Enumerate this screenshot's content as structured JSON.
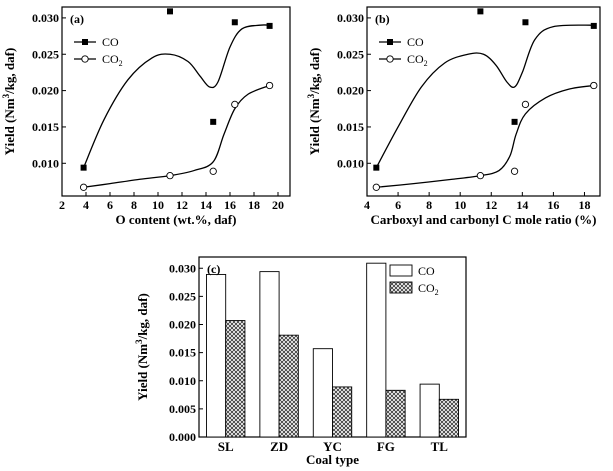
{
  "chart_data": [
    {
      "type": "scatter",
      "panel_label": "(a)",
      "xlabel": "O content (wt.%, daf)",
      "ylabel_pre": "Yield (Nm",
      "ylabel_sup": "3",
      "ylabel_post": "/kg, daf)",
      "xlim": [
        2,
        21
      ],
      "ylim": [
        0.0055,
        0.0315
      ],
      "xticks": [
        "2",
        "4",
        "6",
        "8",
        "10",
        "12",
        "14",
        "16",
        "18",
        "20"
      ],
      "yticks": [
        "0.010",
        "0.015",
        "0.020",
        "0.025",
        "0.030"
      ],
      "legend": {
        "position": "top-left",
        "co": "CO",
        "co2_main": "CO",
        "co2_sub": "2"
      },
      "series": [
        {
          "name": "CO",
          "marker": "filled-square",
          "x": [
            3.8,
            11.0,
            14.6,
            16.4,
            19.3
          ],
          "y": [
            0.0094,
            0.0309,
            0.0157,
            0.0294,
            0.0289
          ],
          "curve_x": [
            3.8,
            5.5,
            7.5,
            9.5,
            11.0,
            12.5,
            13.5,
            14.3,
            15.0,
            16.0,
            17.0,
            18.5,
            19.3
          ],
          "curve_y": [
            0.0094,
            0.016,
            0.0215,
            0.0245,
            0.025,
            0.024,
            0.022,
            0.0205,
            0.0212,
            0.026,
            0.0285,
            0.029,
            0.029
          ]
        },
        {
          "name": "CO2",
          "marker": "open-circle",
          "x": [
            3.8,
            11.0,
            14.6,
            16.4,
            19.3
          ],
          "y": [
            0.0067,
            0.0083,
            0.0089,
            0.0181,
            0.0207
          ],
          "curve_x": [
            3.8,
            6.0,
            8.5,
            11.0,
            13.0,
            14.6,
            15.5,
            16.4,
            17.5,
            19.3
          ],
          "curve_y": [
            0.0067,
            0.0072,
            0.0078,
            0.0083,
            0.009,
            0.0102,
            0.014,
            0.0175,
            0.0195,
            0.0207
          ]
        }
      ]
    },
    {
      "type": "scatter",
      "panel_label": "(b)",
      "xlabel": "Carboxyl and carbonyl C mole ratio (%)",
      "ylabel_pre": "Yield (Nm",
      "ylabel_sup": "3",
      "ylabel_post": "/kg, daf)",
      "xlim": [
        4,
        19
      ],
      "ylim": [
        0.0055,
        0.0315
      ],
      "xticks": [
        "4",
        "6",
        "8",
        "10",
        "12",
        "14",
        "16",
        "18"
      ],
      "yticks": [
        "0.010",
        "0.015",
        "0.020",
        "0.025",
        "0.030"
      ],
      "legend": {
        "position": "top-left",
        "co": "CO",
        "co2_main": "CO",
        "co2_sub": "2"
      },
      "series": [
        {
          "name": "CO",
          "marker": "filled-square",
          "x": [
            4.6,
            11.3,
            13.5,
            14.2,
            18.6
          ],
          "y": [
            0.0094,
            0.0309,
            0.0157,
            0.0294,
            0.0289
          ],
          "curve_x": [
            4.6,
            6.0,
            7.5,
            9.0,
            10.5,
            11.5,
            12.3,
            13.0,
            13.5,
            14.0,
            14.8,
            16.0,
            18.6
          ],
          "curve_y": [
            0.0094,
            0.015,
            0.0205,
            0.0238,
            0.025,
            0.025,
            0.0235,
            0.0212,
            0.0205,
            0.0225,
            0.027,
            0.0288,
            0.029
          ]
        },
        {
          "name": "CO2",
          "marker": "open-circle",
          "x": [
            4.6,
            11.3,
            13.5,
            14.2,
            18.6
          ],
          "y": [
            0.0067,
            0.0083,
            0.0089,
            0.0181,
            0.0207
          ],
          "curve_x": [
            4.6,
            7.0,
            9.5,
            11.3,
            12.5,
            13.2,
            13.6,
            14.2,
            15.5,
            17.0,
            18.6
          ],
          "curve_y": [
            0.0067,
            0.0072,
            0.0078,
            0.0083,
            0.009,
            0.011,
            0.014,
            0.0168,
            0.019,
            0.0202,
            0.0207
          ]
        }
      ]
    },
    {
      "type": "bar",
      "panel_label": "(c)",
      "xlabel": "Coal type",
      "ylabel_pre": "Yield (Nm",
      "ylabel_sup": "3",
      "ylabel_post": "/kg, daf)",
      "ylim": [
        0,
        0.032
      ],
      "categories": [
        "SL",
        "ZD",
        "YC",
        "FG",
        "TL"
      ],
      "yticks": [
        "0.000",
        "0.005",
        "0.010",
        "0.015",
        "0.020",
        "0.025",
        "0.030"
      ],
      "legend": {
        "position": "top-right",
        "co": "CO",
        "co2_main": "CO",
        "co2_sub": "2"
      },
      "series": [
        {
          "name": "CO",
          "fill": "white",
          "values": [
            0.0289,
            0.0294,
            0.0157,
            0.0309,
            0.0094
          ]
        },
        {
          "name": "CO2",
          "fill": "crosshatch",
          "values": [
            0.0207,
            0.0181,
            0.0089,
            0.0083,
            0.0067
          ]
        }
      ]
    }
  ]
}
